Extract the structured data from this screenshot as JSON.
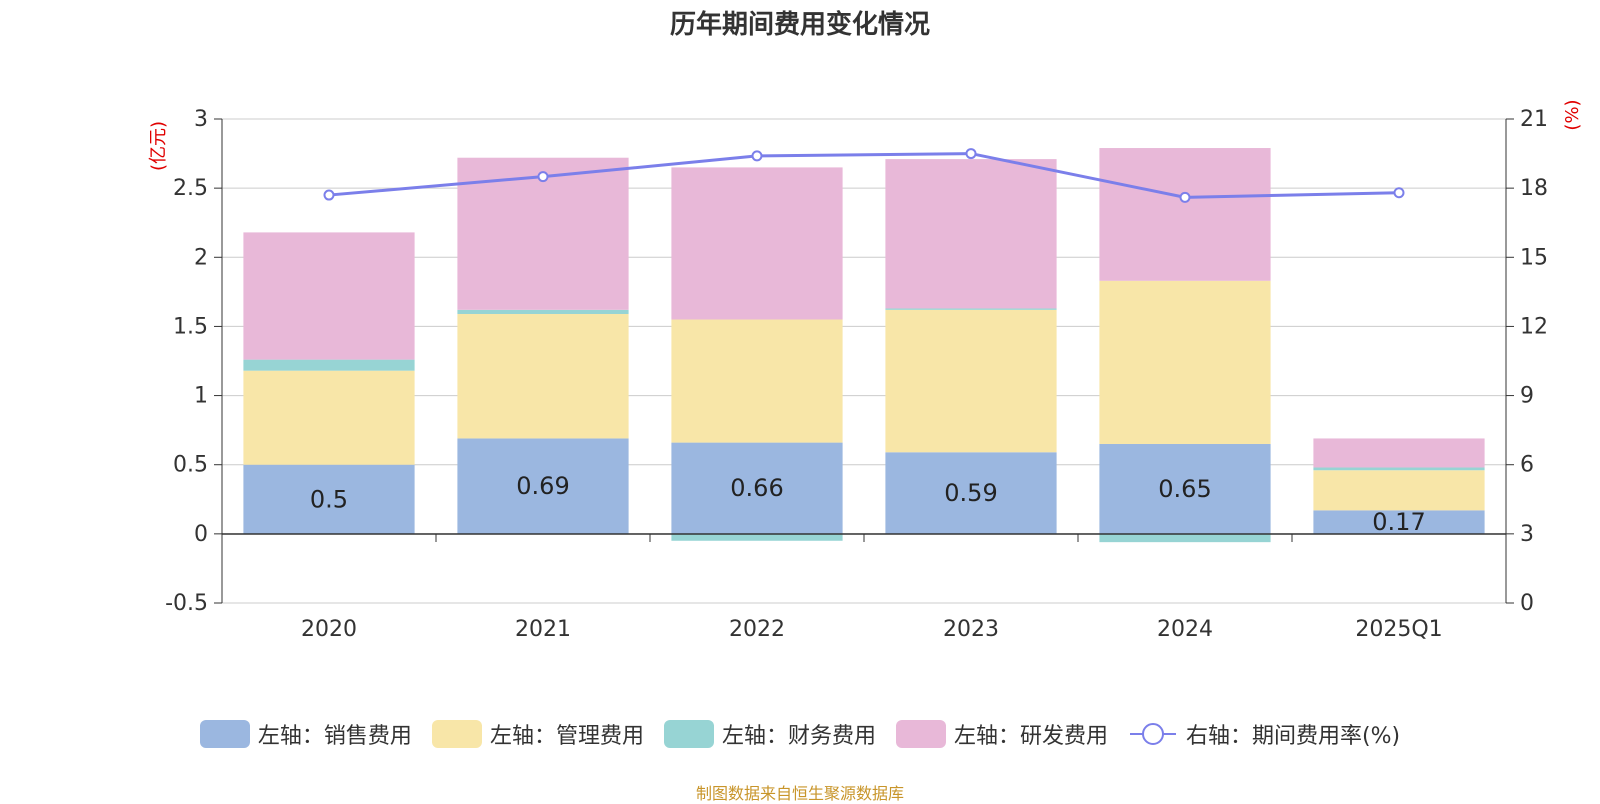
{
  "title": "历年期间费用变化情况",
  "source": "制图数据来自恒生聚源数据库",
  "left_axis_unit": "(亿元)",
  "right_axis_unit": "(%)",
  "colors": {
    "sales": "#9bb7e0",
    "admin": "#f8e6a8",
    "finance": "#97d4d4",
    "rd": "#e8b8d8",
    "rate": "#7b7fea",
    "grid": "#cccccc",
    "axis": "#333333"
  },
  "legend": [
    {
      "key": "sales",
      "label": "左轴：销售费用"
    },
    {
      "key": "admin",
      "label": "左轴：管理费用"
    },
    {
      "key": "finance",
      "label": "左轴：财务费用"
    },
    {
      "key": "rd",
      "label": "左轴：研发费用"
    },
    {
      "key": "rate",
      "label": "右轴：期间费用率(%)"
    }
  ],
  "chart_data": {
    "type": "bar",
    "stacked": true,
    "categories": [
      "2020",
      "2021",
      "2022",
      "2023",
      "2024",
      "2025Q1"
    ],
    "series": [
      {
        "name": "左轴：销售费用",
        "key": "sales",
        "axis": "left",
        "values": [
          0.5,
          0.69,
          0.66,
          0.59,
          0.65,
          0.17
        ],
        "labels": [
          "0.5",
          "0.69",
          "0.66",
          "0.59",
          "0.65",
          "0.17"
        ]
      },
      {
        "name": "左轴：管理费用",
        "key": "admin",
        "axis": "left",
        "values": [
          0.68,
          0.9,
          0.89,
          1.03,
          1.18,
          0.29
        ]
      },
      {
        "name": "左轴：财务费用",
        "key": "finance",
        "axis": "left",
        "values": [
          0.08,
          0.03,
          -0.05,
          0.01,
          -0.06,
          0.02
        ]
      },
      {
        "name": "左轴：研发费用",
        "key": "rd",
        "axis": "left",
        "values": [
          0.92,
          1.1,
          1.1,
          1.08,
          0.96,
          0.21
        ]
      },
      {
        "name": "右轴：期间费用率(%)",
        "key": "rate",
        "axis": "right",
        "type": "line",
        "values": [
          17.7,
          18.5,
          19.4,
          19.5,
          17.6,
          17.8
        ]
      }
    ],
    "left_axis": {
      "ylim": [
        -0.5,
        3
      ],
      "ticks": [
        "-0.5",
        "0",
        "0.5",
        "1",
        "1.5",
        "2",
        "2.5",
        "3"
      ]
    },
    "right_axis": {
      "ylim": [
        0,
        21
      ],
      "ticks": [
        "0",
        "3",
        "6",
        "9",
        "12",
        "15",
        "18",
        "21"
      ]
    },
    "grid": true,
    "legend_position": "bottom"
  }
}
